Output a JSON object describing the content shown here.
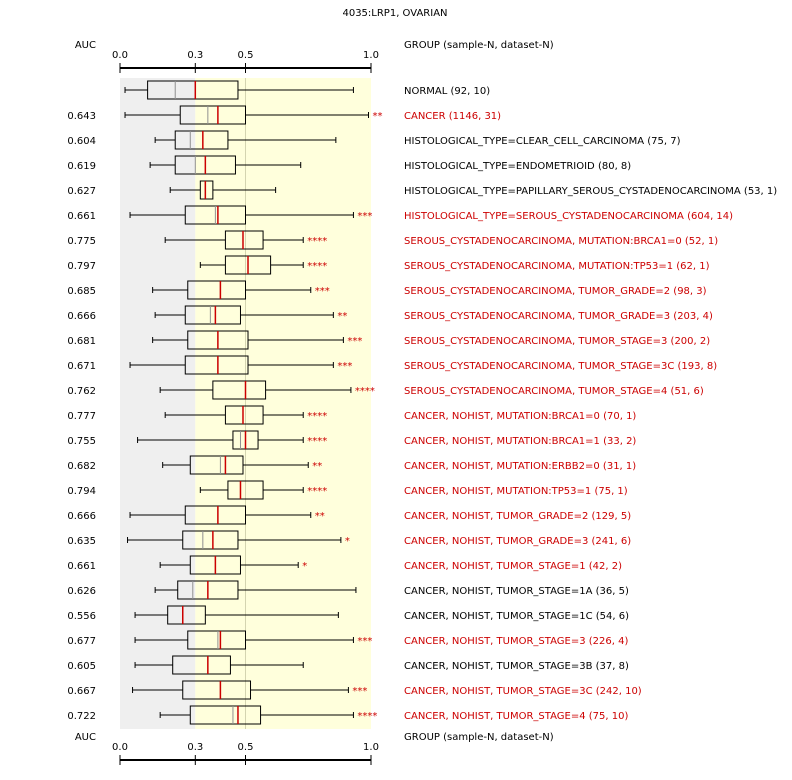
{
  "chart_data": {
    "type": "boxplot",
    "title": "4035:LRP1, OVARIAN",
    "auc_header": "AUC",
    "group_header": "GROUP (sample-N, dataset-N)",
    "xlim": [
      0.0,
      1.0
    ],
    "x_ticks": [
      0.0,
      0.3,
      0.5,
      1.0
    ],
    "x_tick_labels": [
      "0.0",
      "0.3",
      "0.5",
      "1.0"
    ],
    "shaded_bands": [
      {
        "range": [
          0.0,
          0.3
        ],
        "color": "#efefef"
      },
      {
        "range": [
          0.3,
          1.0
        ],
        "color": "#ffffdc"
      }
    ],
    "reference_line": 0.5,
    "colors": {
      "significant": "#cc0000",
      "normal": "#000000",
      "median": "#cc0000"
    },
    "groups": [
      {
        "label": "NORMAL (92, 10)",
        "auc": "",
        "stars": "",
        "highlight": false,
        "whisker_low": 0.02,
        "q1": 0.11,
        "median": 0.22,
        "mean": 0.3,
        "q3": 0.47,
        "whisker_high": 0.93
      },
      {
        "label": "CANCER (1146, 31)",
        "auc": "0.643",
        "stars": "**",
        "highlight": true,
        "whisker_low": 0.02,
        "q1": 0.24,
        "median": 0.35,
        "mean": 0.39,
        "q3": 0.5,
        "whisker_high": 0.99
      },
      {
        "label": "HISTOLOGICAL_TYPE=CLEAR_CELL_CARCINOMA (75, 7)",
        "auc": "0.604",
        "stars": "",
        "highlight": false,
        "whisker_low": 0.14,
        "q1": 0.22,
        "median": 0.28,
        "mean": 0.33,
        "q3": 0.43,
        "whisker_high": 0.86
      },
      {
        "label": "HISTOLOGICAL_TYPE=ENDOMETRIOID (80, 8)",
        "auc": "0.619",
        "stars": "",
        "highlight": false,
        "whisker_low": 0.12,
        "q1": 0.22,
        "median": 0.3,
        "mean": 0.34,
        "q3": 0.46,
        "whisker_high": 0.72
      },
      {
        "label": "HISTOLOGICAL_TYPE=PAPILLARY_SEROUS_CYSTADENOCARCINOMA (53, 1)",
        "auc": "0.627",
        "stars": "",
        "highlight": false,
        "whisker_low": 0.2,
        "q1": 0.32,
        "median": 0.34,
        "mean": 0.34,
        "q3": 0.37,
        "whisker_high": 0.62
      },
      {
        "label": "HISTOLOGICAL_TYPE=SEROUS_CYSTADENOCARCINOMA (604, 14)",
        "auc": "0.661",
        "stars": "***",
        "highlight": true,
        "whisker_low": 0.04,
        "q1": 0.26,
        "median": 0.38,
        "mean": 0.39,
        "q3": 0.5,
        "whisker_high": 0.93
      },
      {
        "label": "SEROUS_CYSTADENOCARCINOMA, MUTATION:BRCA1=0 (52, 1)",
        "auc": "0.775",
        "stars": "****",
        "highlight": true,
        "whisker_low": 0.18,
        "q1": 0.42,
        "median": 0.49,
        "mean": 0.49,
        "q3": 0.57,
        "whisker_high": 0.73
      },
      {
        "label": "SEROUS_CYSTADENOCARCINOMA, MUTATION:TP53=1 (62, 1)",
        "auc": "0.797",
        "stars": "****",
        "highlight": true,
        "whisker_low": 0.32,
        "q1": 0.42,
        "median": 0.51,
        "mean": 0.51,
        "q3": 0.6,
        "whisker_high": 0.73
      },
      {
        "label": "SEROUS_CYSTADENOCARCINOMA, TUMOR_GRADE=2 (98, 3)",
        "auc": "0.685",
        "stars": "***",
        "highlight": true,
        "whisker_low": 0.13,
        "q1": 0.27,
        "median": 0.4,
        "mean": 0.4,
        "q3": 0.5,
        "whisker_high": 0.76
      },
      {
        "label": "SEROUS_CYSTADENOCARCINOMA, TUMOR_GRADE=3 (203, 4)",
        "auc": "0.666",
        "stars": "**",
        "highlight": true,
        "whisker_low": 0.14,
        "q1": 0.26,
        "median": 0.36,
        "mean": 0.38,
        "q3": 0.48,
        "whisker_high": 0.85
      },
      {
        "label": "SEROUS_CYSTADENOCARCINOMA, TUMOR_STAGE=3 (200, 2)",
        "auc": "0.681",
        "stars": "***",
        "highlight": true,
        "whisker_low": 0.13,
        "q1": 0.27,
        "median": 0.39,
        "mean": 0.39,
        "q3": 0.51,
        "whisker_high": 0.89
      },
      {
        "label": "SEROUS_CYSTADENOCARCINOMA, TUMOR_STAGE=3C (193, 8)",
        "auc": "0.671",
        "stars": "***",
        "highlight": true,
        "whisker_low": 0.04,
        "q1": 0.26,
        "median": 0.39,
        "mean": 0.39,
        "q3": 0.51,
        "whisker_high": 0.85
      },
      {
        "label": "SEROUS_CYSTADENOCARCINOMA, TUMOR_STAGE=4 (51, 6)",
        "auc": "0.762",
        "stars": "****",
        "highlight": true,
        "whisker_low": 0.16,
        "q1": 0.37,
        "median": 0.5,
        "mean": 0.5,
        "q3": 0.58,
        "whisker_high": 0.92
      },
      {
        "label": "CANCER, NOHIST, MUTATION:BRCA1=0 (70, 1)",
        "auc": "0.777",
        "stars": "****",
        "highlight": true,
        "whisker_low": 0.18,
        "q1": 0.42,
        "median": 0.49,
        "mean": 0.49,
        "q3": 0.57,
        "whisker_high": 0.73
      },
      {
        "label": "CANCER, NOHIST, MUTATION:BRCA1=1 (33, 2)",
        "auc": "0.755",
        "stars": "****",
        "highlight": true,
        "whisker_low": 0.07,
        "q1": 0.45,
        "median": 0.48,
        "mean": 0.5,
        "q3": 0.55,
        "whisker_high": 0.73
      },
      {
        "label": "CANCER, NOHIST, MUTATION:ERBB2=0 (31, 1)",
        "auc": "0.682",
        "stars": "**",
        "highlight": true,
        "whisker_low": 0.17,
        "q1": 0.28,
        "median": 0.4,
        "mean": 0.42,
        "q3": 0.49,
        "whisker_high": 0.75
      },
      {
        "label": "CANCER, NOHIST, MUTATION:TP53=1 (75, 1)",
        "auc": "0.794",
        "stars": "****",
        "highlight": true,
        "whisker_low": 0.32,
        "q1": 0.43,
        "median": 0.48,
        "mean": 0.48,
        "q3": 0.57,
        "whisker_high": 0.73
      },
      {
        "label": "CANCER, NOHIST, TUMOR_GRADE=2 (129, 5)",
        "auc": "0.666",
        "stars": "**",
        "highlight": true,
        "whisker_low": 0.04,
        "q1": 0.26,
        "median": 0.39,
        "mean": 0.39,
        "q3": 0.5,
        "whisker_high": 0.76
      },
      {
        "label": "CANCER, NOHIST, TUMOR_GRADE=3 (241, 6)",
        "auc": "0.635",
        "stars": "*",
        "highlight": true,
        "whisker_low": 0.03,
        "q1": 0.25,
        "median": 0.33,
        "mean": 0.37,
        "q3": 0.47,
        "whisker_high": 0.88
      },
      {
        "label": "CANCER, NOHIST, TUMOR_STAGE=1 (42, 2)",
        "auc": "0.661",
        "stars": "*",
        "highlight": true,
        "whisker_low": 0.16,
        "q1": 0.28,
        "median": 0.38,
        "mean": 0.38,
        "q3": 0.48,
        "whisker_high": 0.71
      },
      {
        "label": "CANCER, NOHIST, TUMOR_STAGE=1A (36, 5)",
        "auc": "0.626",
        "stars": "",
        "highlight": false,
        "whisker_low": 0.14,
        "q1": 0.23,
        "median": 0.29,
        "mean": 0.35,
        "q3": 0.47,
        "whisker_high": 0.94
      },
      {
        "label": "CANCER, NOHIST, TUMOR_STAGE=1C (54, 6)",
        "auc": "0.556",
        "stars": "",
        "highlight": false,
        "whisker_low": 0.06,
        "q1": 0.19,
        "median": 0.25,
        "mean": 0.25,
        "q3": 0.34,
        "whisker_high": 0.87
      },
      {
        "label": "CANCER, NOHIST, TUMOR_STAGE=3 (226, 4)",
        "auc": "0.677",
        "stars": "***",
        "highlight": true,
        "whisker_low": 0.06,
        "q1": 0.27,
        "median": 0.39,
        "mean": 0.4,
        "q3": 0.5,
        "whisker_high": 0.93
      },
      {
        "label": "CANCER, NOHIST, TUMOR_STAGE=3B (37, 8)",
        "auc": "0.605",
        "stars": "",
        "highlight": false,
        "whisker_low": 0.06,
        "q1": 0.21,
        "median": 0.35,
        "mean": 0.35,
        "q3": 0.44,
        "whisker_high": 0.73
      },
      {
        "label": "CANCER, NOHIST, TUMOR_STAGE=3C (242, 10)",
        "auc": "0.667",
        "stars": "***",
        "highlight": true,
        "whisker_low": 0.05,
        "q1": 0.25,
        "median": 0.4,
        "mean": 0.4,
        "q3": 0.52,
        "whisker_high": 0.91
      },
      {
        "label": "CANCER, NOHIST, TUMOR_STAGE=4 (75, 10)",
        "auc": "0.722",
        "stars": "****",
        "highlight": true,
        "whisker_low": 0.16,
        "q1": 0.28,
        "median": 0.45,
        "mean": 0.47,
        "q3": 0.56,
        "whisker_high": 0.93
      }
    ]
  }
}
